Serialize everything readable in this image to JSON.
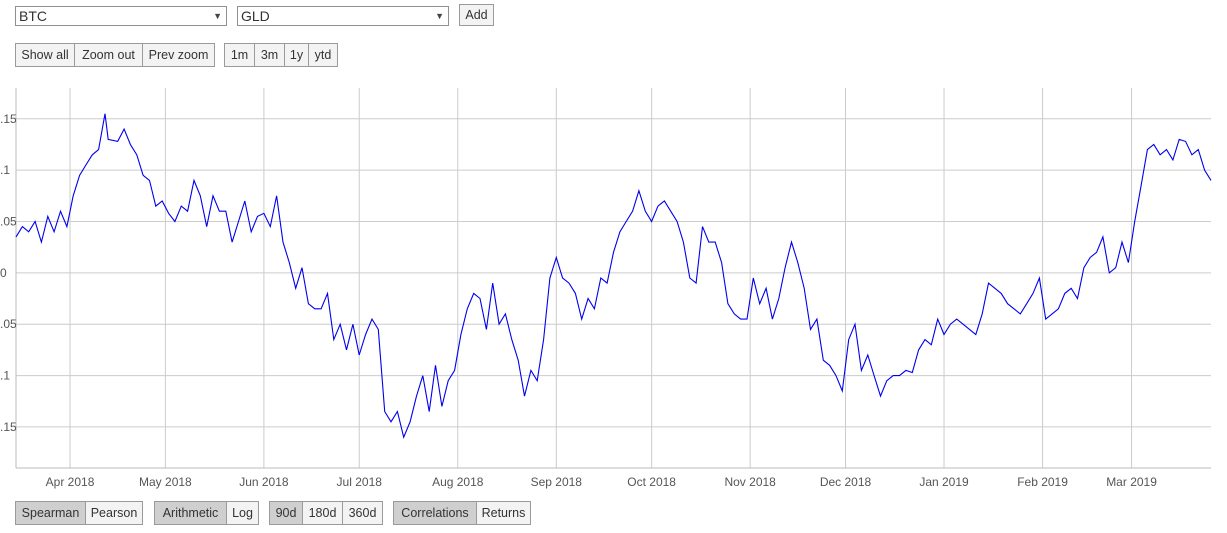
{
  "selectors": {
    "first": {
      "value": "BTC"
    },
    "second": {
      "value": "GLD"
    },
    "add_label": "Add"
  },
  "zoom_controls": {
    "show_all": "Show all",
    "zoom_out": "Zoom out",
    "prev_zoom": "Prev zoom"
  },
  "range_buttons": [
    "1m",
    "3m",
    "1y",
    "ytd"
  ],
  "bottom_controls": {
    "method": {
      "options": [
        "Spearman",
        "Pearson"
      ],
      "selected": "Spearman"
    },
    "scale": {
      "options": [
        "Arithmetic",
        "Log"
      ],
      "selected": "Arithmetic"
    },
    "window": {
      "options": [
        "90d",
        "180d",
        "360d"
      ],
      "selected": "90d"
    },
    "mode": {
      "options": [
        "Correlations",
        "Returns"
      ],
      "selected": "Correlations"
    }
  },
  "colors": {
    "line": "#0000ee",
    "grid": "#cccccc",
    "active_button": "#cfcfcf"
  },
  "chart_data": {
    "type": "line",
    "ylim": [
      -0.19,
      0.18
    ],
    "y_tick_values": [
      0.15,
      0.1,
      0.05,
      0,
      -0.05,
      -0.1,
      -0.15
    ],
    "y_tick_labels": [
      ".15",
      ".1",
      ".05",
      "0",
      ".05",
      ".1",
      ".15"
    ],
    "x_start": "2018-03-15",
    "x_end": "2019-03-26",
    "x_ticks": [
      {
        "date": "2018-04-01",
        "label": "Apr 2018"
      },
      {
        "date": "2018-05-01",
        "label": "May 2018"
      },
      {
        "date": "2018-06-01",
        "label": "Jun 2018"
      },
      {
        "date": "2018-07-01",
        "label": "Jul 2018"
      },
      {
        "date": "2018-08-01",
        "label": "Aug 2018"
      },
      {
        "date": "2018-09-01",
        "label": "Sep 2018"
      },
      {
        "date": "2018-10-01",
        "label": "Oct 2018"
      },
      {
        "date": "2018-11-01",
        "label": "Nov 2018"
      },
      {
        "date": "2018-12-01",
        "label": "Dec 2018"
      },
      {
        "date": "2019-01-01",
        "label": "Jan 2019"
      },
      {
        "date": "2019-02-01",
        "label": "Feb 2019"
      },
      {
        "date": "2019-03-01",
        "label": "Mar 2019"
      }
    ],
    "series": [
      {
        "points": [
          [
            "2018-03-15",
            0.035
          ],
          [
            "2018-03-17",
            0.045
          ],
          [
            "2018-03-19",
            0.04
          ],
          [
            "2018-03-21",
            0.05
          ],
          [
            "2018-03-23",
            0.03
          ],
          [
            "2018-03-25",
            0.055
          ],
          [
            "2018-03-27",
            0.04
          ],
          [
            "2018-03-29",
            0.06
          ],
          [
            "2018-03-31",
            0.045
          ],
          [
            "2018-04-02",
            0.075
          ],
          [
            "2018-04-04",
            0.095
          ],
          [
            "2018-04-06",
            0.105
          ],
          [
            "2018-04-08",
            0.115
          ],
          [
            "2018-04-10",
            0.12
          ],
          [
            "2018-04-12",
            0.155
          ],
          [
            "2018-04-13",
            0.13
          ],
          [
            "2018-04-16",
            0.128
          ],
          [
            "2018-04-18",
            0.14
          ],
          [
            "2018-04-20",
            0.125
          ],
          [
            "2018-04-22",
            0.115
          ],
          [
            "2018-04-24",
            0.095
          ],
          [
            "2018-04-26",
            0.09
          ],
          [
            "2018-04-28",
            0.065
          ],
          [
            "2018-04-30",
            0.07
          ],
          [
            "2018-05-02",
            0.058
          ],
          [
            "2018-05-04",
            0.05
          ],
          [
            "2018-05-06",
            0.065
          ],
          [
            "2018-05-08",
            0.06
          ],
          [
            "2018-05-10",
            0.09
          ],
          [
            "2018-05-12",
            0.075
          ],
          [
            "2018-05-14",
            0.045
          ],
          [
            "2018-05-16",
            0.075
          ],
          [
            "2018-05-18",
            0.06
          ],
          [
            "2018-05-20",
            0.06
          ],
          [
            "2018-05-22",
            0.03
          ],
          [
            "2018-05-24",
            0.05
          ],
          [
            "2018-05-26",
            0.07
          ],
          [
            "2018-05-28",
            0.04
          ],
          [
            "2018-05-30",
            0.055
          ],
          [
            "2018-06-01",
            0.058
          ],
          [
            "2018-06-03",
            0.045
          ],
          [
            "2018-06-05",
            0.075
          ],
          [
            "2018-06-07",
            0.03
          ],
          [
            "2018-06-09",
            0.01
          ],
          [
            "2018-06-11",
            -0.015
          ],
          [
            "2018-06-13",
            0.005
          ],
          [
            "2018-06-15",
            -0.03
          ],
          [
            "2018-06-17",
            -0.035
          ],
          [
            "2018-06-19",
            -0.035
          ],
          [
            "2018-06-21",
            -0.02
          ],
          [
            "2018-06-23",
            -0.065
          ],
          [
            "2018-06-25",
            -0.05
          ],
          [
            "2018-06-27",
            -0.075
          ],
          [
            "2018-06-29",
            -0.05
          ],
          [
            "2018-07-01",
            -0.08
          ],
          [
            "2018-07-03",
            -0.06
          ],
          [
            "2018-07-05",
            -0.045
          ],
          [
            "2018-07-07",
            -0.055
          ],
          [
            "2018-07-08",
            -0.095
          ],
          [
            "2018-07-09",
            -0.135
          ],
          [
            "2018-07-11",
            -0.145
          ],
          [
            "2018-07-13",
            -0.135
          ],
          [
            "2018-07-15",
            -0.16
          ],
          [
            "2018-07-17",
            -0.145
          ],
          [
            "2018-07-19",
            -0.12
          ],
          [
            "2018-07-21",
            -0.1
          ],
          [
            "2018-07-23",
            -0.135
          ],
          [
            "2018-07-25",
            -0.09
          ],
          [
            "2018-07-27",
            -0.13
          ],
          [
            "2018-07-29",
            -0.105
          ],
          [
            "2018-07-31",
            -0.095
          ],
          [
            "2018-08-02",
            -0.06
          ],
          [
            "2018-08-04",
            -0.035
          ],
          [
            "2018-08-06",
            -0.02
          ],
          [
            "2018-08-08",
            -0.025
          ],
          [
            "2018-08-10",
            -0.055
          ],
          [
            "2018-08-12",
            -0.01
          ],
          [
            "2018-08-14",
            -0.05
          ],
          [
            "2018-08-16",
            -0.04
          ],
          [
            "2018-08-18",
            -0.065
          ],
          [
            "2018-08-20",
            -0.085
          ],
          [
            "2018-08-22",
            -0.12
          ],
          [
            "2018-08-24",
            -0.095
          ],
          [
            "2018-08-26",
            -0.105
          ],
          [
            "2018-08-28",
            -0.065
          ],
          [
            "2018-08-30",
            -0.005
          ],
          [
            "2018-09-01",
            0.015
          ],
          [
            "2018-09-03",
            -0.005
          ],
          [
            "2018-09-05",
            -0.01
          ],
          [
            "2018-09-07",
            -0.02
          ],
          [
            "2018-09-09",
            -0.045
          ],
          [
            "2018-09-11",
            -0.025
          ],
          [
            "2018-09-13",
            -0.035
          ],
          [
            "2018-09-15",
            -0.005
          ],
          [
            "2018-09-17",
            -0.01
          ],
          [
            "2018-09-19",
            0.02
          ],
          [
            "2018-09-21",
            0.04
          ],
          [
            "2018-09-23",
            0.05
          ],
          [
            "2018-09-25",
            0.06
          ],
          [
            "2018-09-27",
            0.08
          ],
          [
            "2018-09-29",
            0.06
          ],
          [
            "2018-10-01",
            0.05
          ],
          [
            "2018-10-03",
            0.065
          ],
          [
            "2018-10-05",
            0.07
          ],
          [
            "2018-10-07",
            0.06
          ],
          [
            "2018-10-09",
            0.05
          ],
          [
            "2018-10-11",
            0.03
          ],
          [
            "2018-10-13",
            -0.005
          ],
          [
            "2018-10-15",
            -0.01
          ],
          [
            "2018-10-17",
            0.045
          ],
          [
            "2018-10-19",
            0.03
          ],
          [
            "2018-10-21",
            0.03
          ],
          [
            "2018-10-23",
            0.01
          ],
          [
            "2018-10-25",
            -0.03
          ],
          [
            "2018-10-27",
            -0.04
          ],
          [
            "2018-10-29",
            -0.045
          ],
          [
            "2018-10-31",
            -0.045
          ],
          [
            "2018-11-02",
            -0.005
          ],
          [
            "2018-11-04",
            -0.03
          ],
          [
            "2018-11-06",
            -0.015
          ],
          [
            "2018-11-08",
            -0.045
          ],
          [
            "2018-11-10",
            -0.025
          ],
          [
            "2018-11-12",
            0.005
          ],
          [
            "2018-11-14",
            0.03
          ],
          [
            "2018-11-16",
            0.01
          ],
          [
            "2018-11-18",
            -0.015
          ],
          [
            "2018-11-20",
            -0.055
          ],
          [
            "2018-11-22",
            -0.045
          ],
          [
            "2018-11-24",
            -0.085
          ],
          [
            "2018-11-26",
            -0.09
          ],
          [
            "2018-11-28",
            -0.1
          ],
          [
            "2018-11-30",
            -0.115
          ],
          [
            "2018-12-02",
            -0.065
          ],
          [
            "2018-12-04",
            -0.05
          ],
          [
            "2018-12-06",
            -0.095
          ],
          [
            "2018-12-08",
            -0.08
          ],
          [
            "2018-12-10",
            -0.1
          ],
          [
            "2018-12-12",
            -0.12
          ],
          [
            "2018-12-14",
            -0.105
          ],
          [
            "2018-12-16",
            -0.1
          ],
          [
            "2018-12-18",
            -0.1
          ],
          [
            "2018-12-20",
            -0.095
          ],
          [
            "2018-12-22",
            -0.097
          ],
          [
            "2018-12-24",
            -0.075
          ],
          [
            "2018-12-26",
            -0.065
          ],
          [
            "2018-12-28",
            -0.07
          ],
          [
            "2018-12-30",
            -0.045
          ],
          [
            "2019-01-01",
            -0.06
          ],
          [
            "2019-01-03",
            -0.05
          ],
          [
            "2019-01-05",
            -0.045
          ],
          [
            "2019-01-07",
            -0.05
          ],
          [
            "2019-01-09",
            -0.055
          ],
          [
            "2019-01-11",
            -0.06
          ],
          [
            "2019-01-13",
            -0.04
          ],
          [
            "2019-01-15",
            -0.01
          ],
          [
            "2019-01-17",
            -0.015
          ],
          [
            "2019-01-19",
            -0.02
          ],
          [
            "2019-01-21",
            -0.03
          ],
          [
            "2019-01-23",
            -0.035
          ],
          [
            "2019-01-25",
            -0.04
          ],
          [
            "2019-01-27",
            -0.03
          ],
          [
            "2019-01-29",
            -0.02
          ],
          [
            "2019-01-31",
            -0.005
          ],
          [
            "2019-02-02",
            -0.045
          ],
          [
            "2019-02-04",
            -0.04
          ],
          [
            "2019-02-06",
            -0.035
          ],
          [
            "2019-02-08",
            -0.02
          ],
          [
            "2019-02-10",
            -0.015
          ],
          [
            "2019-02-12",
            -0.025
          ],
          [
            "2019-02-14",
            0.005
          ],
          [
            "2019-02-16",
            0.015
          ],
          [
            "2019-02-18",
            0.02
          ],
          [
            "2019-02-20",
            0.035
          ],
          [
            "2019-02-22",
            0.0
          ],
          [
            "2019-02-24",
            0.005
          ],
          [
            "2019-02-26",
            0.03
          ],
          [
            "2019-02-28",
            0.01
          ],
          [
            "2019-03-02",
            0.05
          ],
          [
            "2019-03-04",
            0.085
          ],
          [
            "2019-03-06",
            0.12
          ],
          [
            "2019-03-08",
            0.125
          ],
          [
            "2019-03-10",
            0.115
          ],
          [
            "2019-03-12",
            0.12
          ],
          [
            "2019-03-14",
            0.11
          ],
          [
            "2019-03-16",
            0.13
          ],
          [
            "2019-03-18",
            0.128
          ],
          [
            "2019-03-20",
            0.115
          ],
          [
            "2019-03-22",
            0.12
          ],
          [
            "2019-03-24",
            0.1
          ],
          [
            "2019-03-26",
            0.09
          ]
        ]
      }
    ]
  }
}
